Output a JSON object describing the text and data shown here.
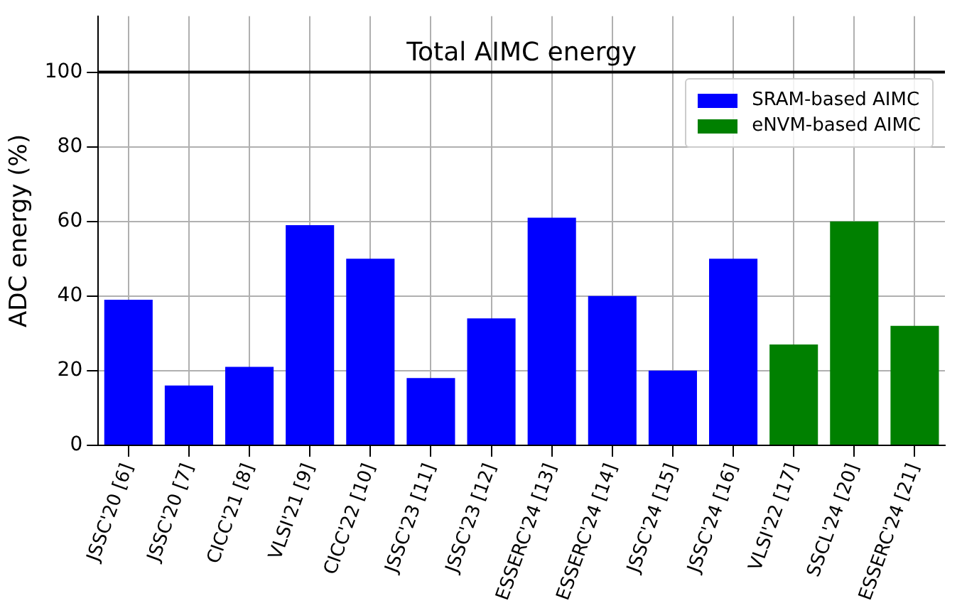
{
  "chart_data": {
    "type": "bar",
    "ylabel": "ADC energy (%)",
    "categories": [
      "JSSC'20 [6]",
      "JSSC'20 [7]",
      "CICC'21 [8]",
      "VLSI'21 [9]",
      "CICC'22 [10]",
      "JSSC'23 [11]",
      "JSSC'23 [12]",
      "ESSERC'24 [13]",
      "ESSERC'24 [14]",
      "JSSC'24 [15]",
      "JSSC'24 [16]",
      "VLSI'22 [17]",
      "SSCL'24 [20]",
      "ESSERC'24 [21]"
    ],
    "series": [
      {
        "name": "SRAM-based AIMC",
        "color": "#0000ff",
        "values": [
          39,
          16,
          21,
          59,
          50,
          18,
          34,
          61,
          40,
          20,
          50,
          null,
          null,
          null
        ]
      },
      {
        "name": "eNVM-based AIMC",
        "color": "#008000",
        "values": [
          null,
          null,
          null,
          null,
          null,
          null,
          null,
          null,
          null,
          null,
          null,
          27,
          60,
          32
        ]
      }
    ],
    "ylim": [
      0,
      115
    ],
    "yticks": [
      0,
      20,
      40,
      60,
      80,
      100
    ],
    "grid": true,
    "legend": "top right",
    "ref_lines": [
      {
        "axis": "y",
        "value": 100,
        "label": "Total AIMC energy",
        "color": "#000000"
      }
    ]
  }
}
